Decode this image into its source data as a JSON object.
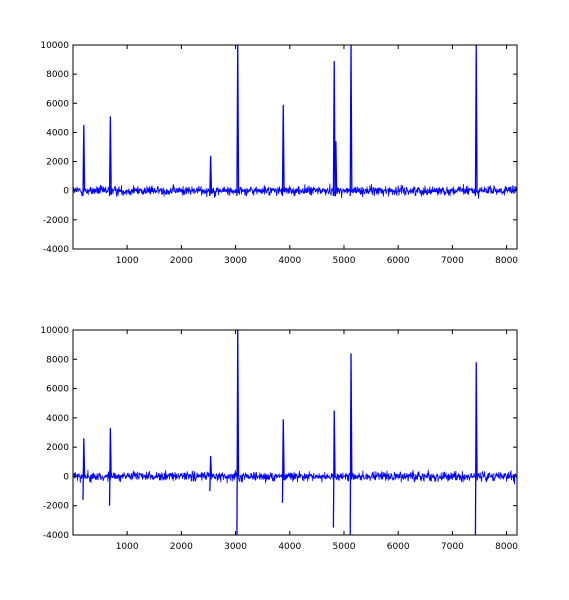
{
  "chart_data": [
    {
      "type": "line",
      "title": "",
      "xlabel": "",
      "ylabel": "",
      "xlim": [
        1,
        8192
      ],
      "ylim": [
        -4000,
        10000
      ],
      "x_ticks": [
        1000,
        2000,
        3000,
        4000,
        5000,
        6000,
        7000,
        8000
      ],
      "x_tick_labels": [
        "1000",
        "2000",
        "3000",
        "4000",
        "5000",
        "6000",
        "7000",
        "8000"
      ],
      "y_ticks": [
        -4000,
        -2000,
        0,
        2000,
        4000,
        6000,
        8000,
        10000
      ],
      "y_tick_labels": [
        "-4000",
        "-2000",
        "0",
        "2000",
        "4000",
        "6000",
        "8000",
        "10000"
      ],
      "grid": false,
      "line_color": "#0000ff",
      "noise_level": 300,
      "spikes": [
        {
          "x": 200,
          "y": 4500
        },
        {
          "x": 690,
          "y": 5100
        },
        {
          "x": 2540,
          "y": 2400
        },
        {
          "x": 3040,
          "y": 10000
        },
        {
          "x": 3880,
          "y": 5900
        },
        {
          "x": 4820,
          "y": 8900
        },
        {
          "x": 4850,
          "y": 3400
        },
        {
          "x": 5130,
          "y": 10000
        },
        {
          "x": 7440,
          "y": 10000
        }
      ]
    },
    {
      "type": "line",
      "title": "",
      "xlabel": "",
      "ylabel": "",
      "xlim": [
        1,
        8192
      ],
      "ylim": [
        -4000,
        10000
      ],
      "x_ticks": [
        1000,
        2000,
        3000,
        4000,
        5000,
        6000,
        7000,
        8000
      ],
      "x_tick_labels": [
        "1000",
        "2000",
        "3000",
        "4000",
        "5000",
        "6000",
        "7000",
        "8000"
      ],
      "y_ticks": [
        -4000,
        -2000,
        0,
        2000,
        4000,
        6000,
        8000,
        10000
      ],
      "y_tick_labels": [
        "-4000",
        "-2000",
        "0",
        "2000",
        "4000",
        "6000",
        "8000",
        "10000"
      ],
      "grid": false,
      "line_color": "#0000ff",
      "noise_level": 300,
      "spikes": [
        {
          "x": 200,
          "y_max": 2600,
          "y_min": -1600
        },
        {
          "x": 690,
          "y_max": 3300,
          "y_min": -2000
        },
        {
          "x": 2540,
          "y_max": 1400,
          "y_min": -1000
        },
        {
          "x": 3040,
          "y_max": 10000,
          "y_min": -4000
        },
        {
          "x": 3880,
          "y_max": 3900,
          "y_min": -1800
        },
        {
          "x": 4820,
          "y_max": 4500,
          "y_min": -3500
        },
        {
          "x": 5130,
          "y_max": 8400,
          "y_min": -4000
        },
        {
          "x": 7440,
          "y_max": 7800,
          "y_min": -4000
        }
      ]
    }
  ]
}
